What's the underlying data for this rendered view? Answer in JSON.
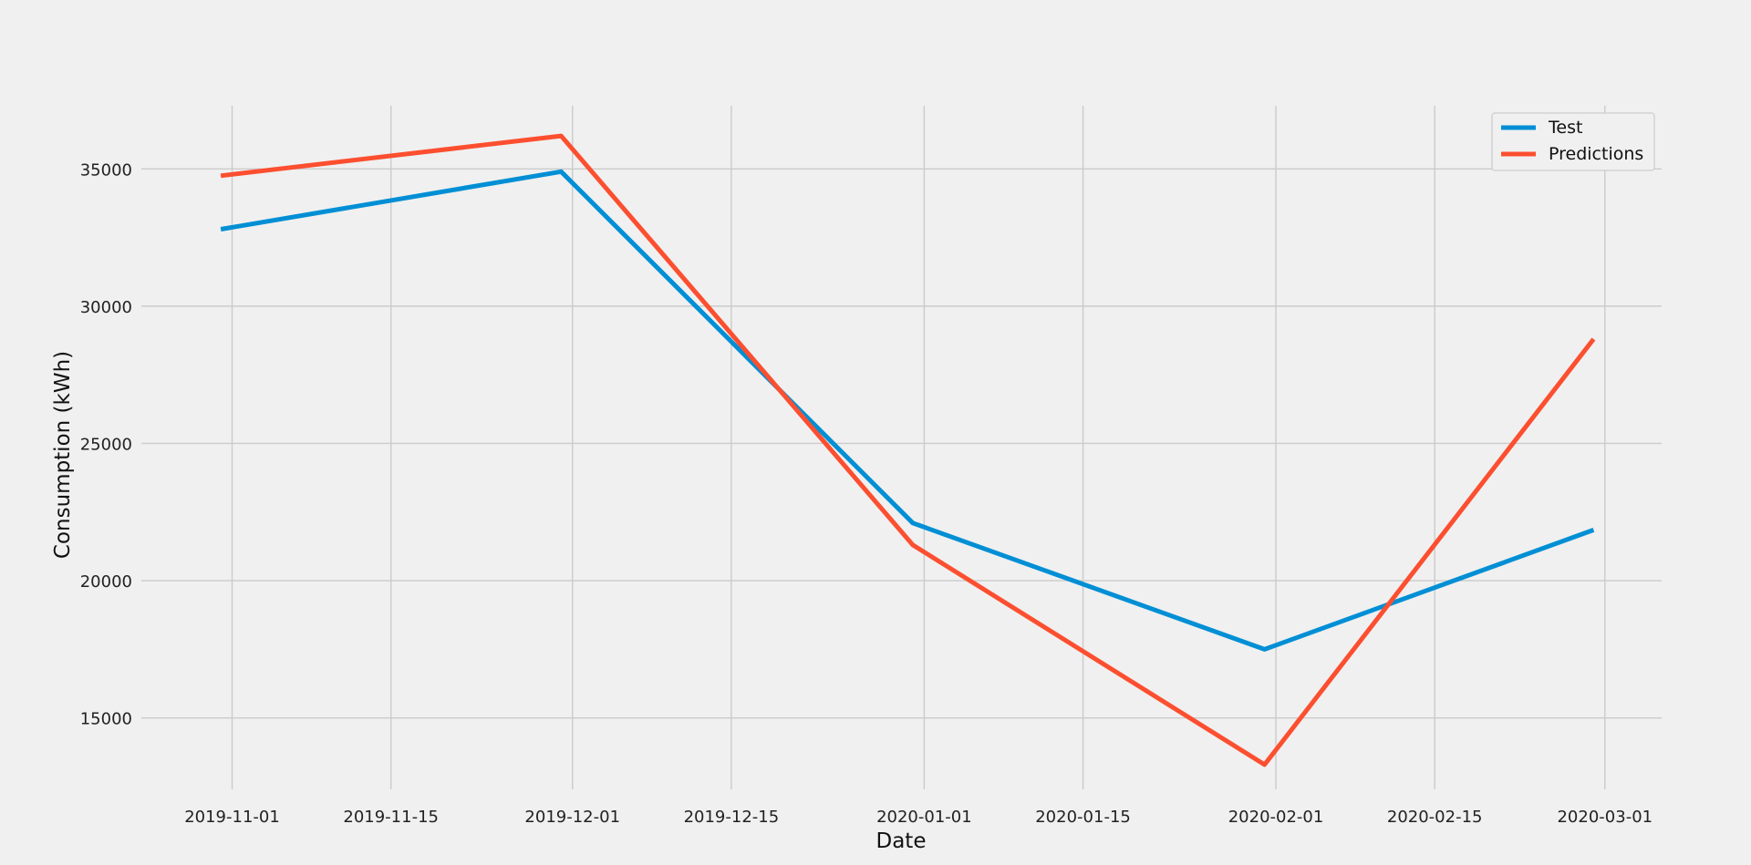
{
  "chart_data": {
    "type": "line",
    "title": "",
    "xlabel": "Date",
    "ylabel": "Consumption (kWh)",
    "x": [
      "2019-10-31",
      "2019-11-30",
      "2019-12-31",
      "2020-01-31",
      "2020-02-29"
    ],
    "series": [
      {
        "name": "Test",
        "color": "#008fd5",
        "values": [
          32800,
          34900,
          22100,
          17500,
          21850
        ]
      },
      {
        "name": "Predictions",
        "color": "#fc4f30",
        "values": [
          34750,
          36200,
          21300,
          13300,
          28800
        ]
      }
    ],
    "ylim": [
      12400,
      37300
    ],
    "xlim": [
      "2019-10-24",
      "2020-03-06"
    ],
    "x_ticks": [
      {
        "date": "2019-11-01",
        "label": "2019-11-01"
      },
      {
        "date": "2019-11-15",
        "label": "2019-11-15"
      },
      {
        "date": "2019-12-01",
        "label": "2019-12-01"
      },
      {
        "date": "2019-12-15",
        "label": "2019-12-15"
      },
      {
        "date": "2020-01-01",
        "label": "2020-01-01"
      },
      {
        "date": "2020-01-15",
        "label": "2020-01-15"
      },
      {
        "date": "2020-02-01",
        "label": "2020-02-01"
      },
      {
        "date": "2020-02-15",
        "label": "2020-02-15"
      },
      {
        "date": "2020-03-01",
        "label": "2020-03-01"
      }
    ],
    "y_ticks": [
      {
        "value": 15000,
        "label": "15000"
      },
      {
        "value": 20000,
        "label": "20000"
      },
      {
        "value": 25000,
        "label": "25000"
      },
      {
        "value": 30000,
        "label": "30000"
      },
      {
        "value": 35000,
        "label": "35000"
      }
    ],
    "grid": true,
    "legend_position": "top-right"
  }
}
